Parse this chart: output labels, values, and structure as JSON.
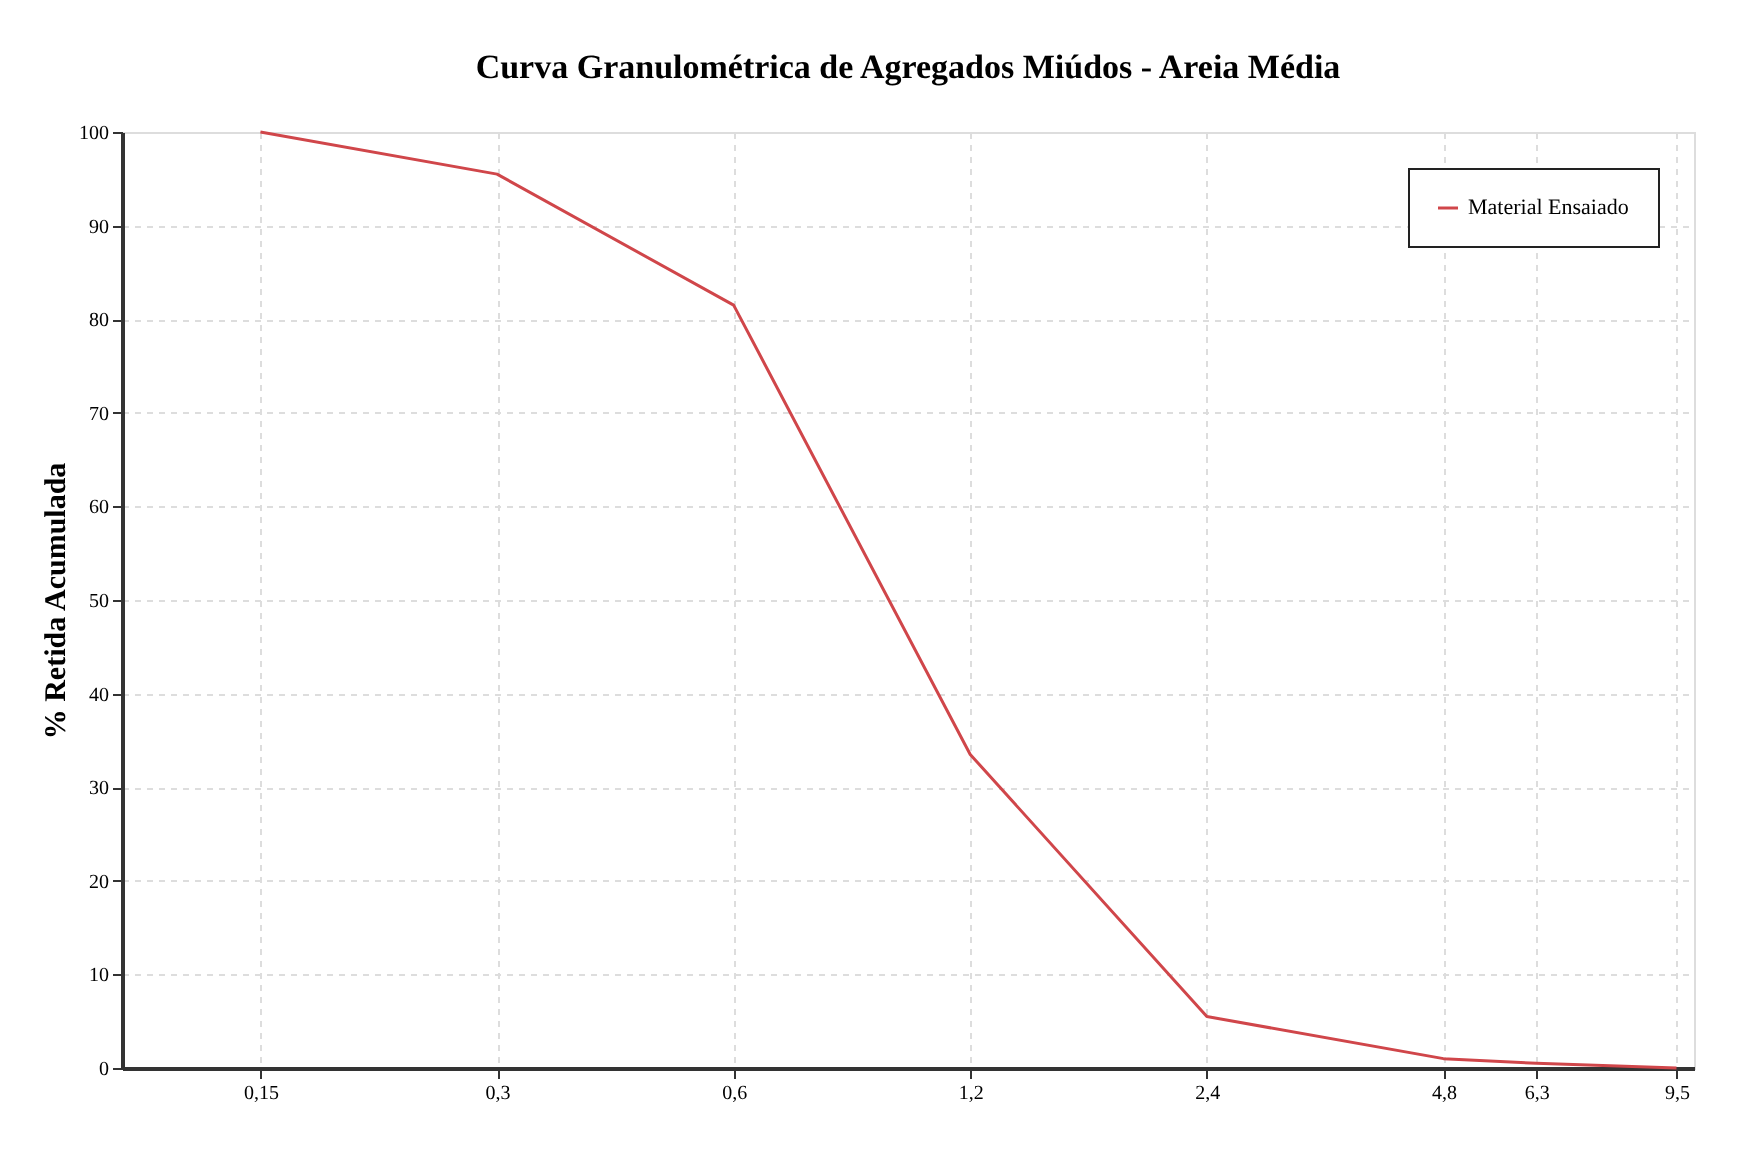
{
  "chart_data": {
    "type": "line",
    "title": "Curva Granulométrica de Agregados Miúdos - Areia Média",
    "ylabel": "% Retida Acumulada",
    "x": [
      0.15,
      0.3,
      0.6,
      1.2,
      2.4,
      4.8,
      6.3,
      9.5
    ],
    "series": [
      {
        "name": "Material Ensaiado",
        "color": "#d0464a",
        "values": [
          100,
          95.5,
          81.5,
          33.5,
          5.5,
          1,
          0.5,
          0
        ]
      }
    ],
    "log": "x",
    "xlim": [
      0.1,
      10
    ],
    "xticks": [
      {
        "value": 0.15,
        "label": "0,15"
      },
      {
        "value": 0.3,
        "label": "0,3"
      },
      {
        "value": 0.6,
        "label": "0,6"
      },
      {
        "value": 1.2,
        "label": "1,2"
      },
      {
        "value": 2.4,
        "label": "2,4"
      },
      {
        "value": 4.8,
        "label": "4,8"
      },
      {
        "value": 6.3,
        "label": "6,3"
      },
      {
        "value": 9.5,
        "label": "9,5"
      }
    ],
    "ylim": [
      0,
      100
    ],
    "yticks": [
      0,
      10,
      20,
      30,
      40,
      50,
      60,
      70,
      80,
      90,
      100
    ],
    "grid": true,
    "legend": "top right",
    "marker": "none",
    "line_style": "solid"
  }
}
